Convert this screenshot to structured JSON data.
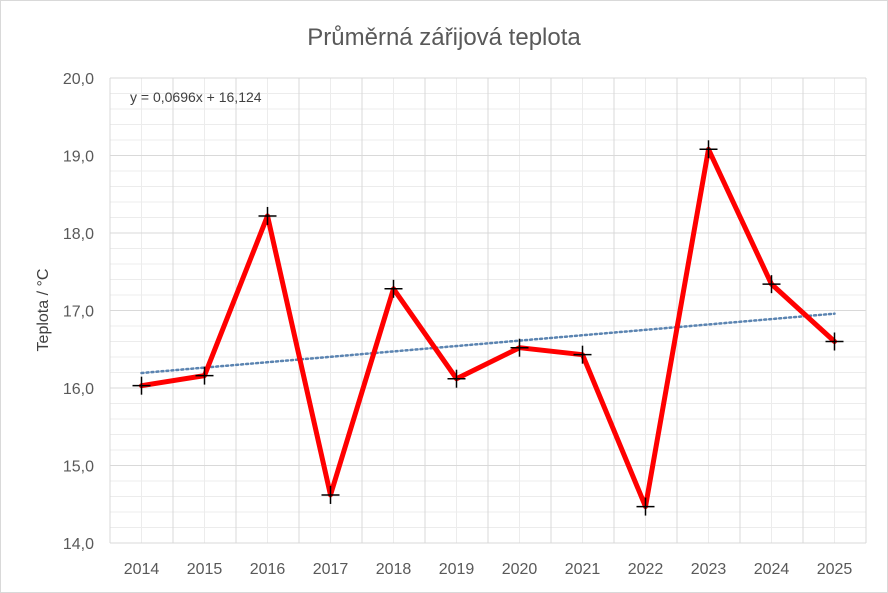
{
  "chart_data": {
    "type": "line",
    "title": "Průměrná zářijová teplota",
    "xlabel": "",
    "ylabel": "Teplota / °C",
    "categories": [
      "2014",
      "2015",
      "2016",
      "2017",
      "2018",
      "2019",
      "2020",
      "2021",
      "2022",
      "2023",
      "2024",
      "2025"
    ],
    "series": [
      {
        "values": [
          16.03,
          16.16,
          18.22,
          14.62,
          17.28,
          16.12,
          16.52,
          16.43,
          14.47,
          19.08,
          17.34,
          16.6
        ],
        "color": "#ff0000",
        "marker": "plus"
      }
    ],
    "trendline": {
      "type": "linear",
      "slope": 0.0696,
      "intercept": 16.124,
      "equation_label": "y = 0,0696x + 16,124",
      "color": "#5b84b1",
      "style": "dotted"
    },
    "ylim": [
      14.0,
      20.0
    ],
    "ytick_step": 1.0,
    "ytick_labels": [
      "14,0",
      "15,0",
      "16,0",
      "17,0",
      "18,0",
      "19,0",
      "20,0"
    ],
    "grid": "major and minor, both axes",
    "legend": "none"
  }
}
